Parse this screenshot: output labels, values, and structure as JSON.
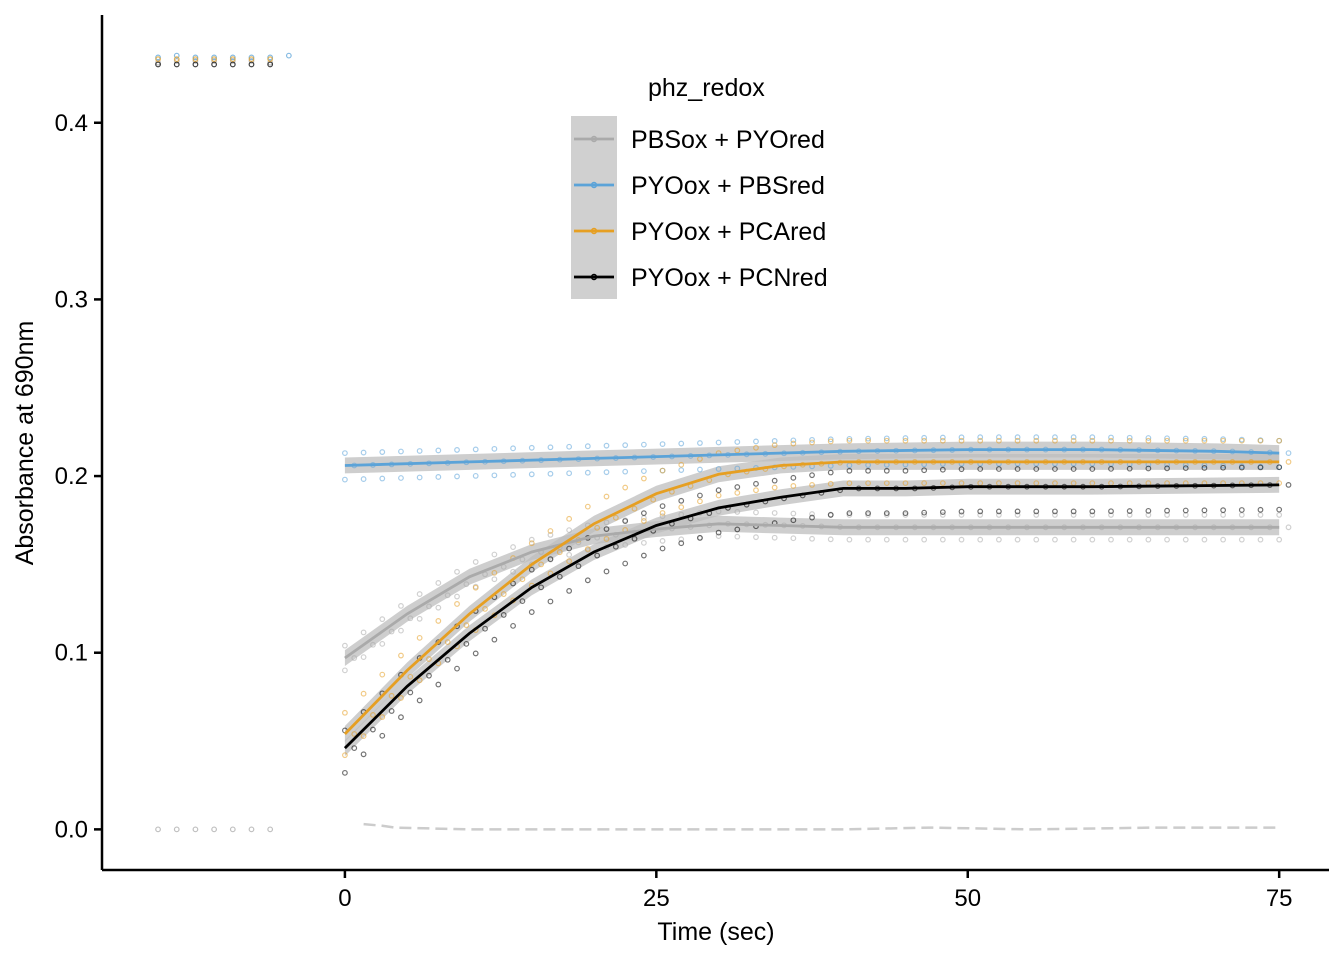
{
  "chart_data": {
    "type": "scatter",
    "xlabel": "Time (sec)",
    "ylabel": "Absorbance at 690nm",
    "xlim": [
      -19.5,
      79
    ],
    "ylim": [
      -0.023,
      0.461
    ],
    "x_ticks": [
      0,
      25,
      50,
      75
    ],
    "y_ticks": [
      0.0,
      0.1,
      0.2,
      0.3,
      0.4
    ],
    "x_tick_labels": [
      "0",
      "25",
      "50",
      "75"
    ],
    "y_tick_labels": [
      "0.0",
      "0.1",
      "0.2",
      "0.3",
      "0.4"
    ],
    "grid": false,
    "legend": {
      "title": "phz_redox",
      "position": "top-center",
      "entries": [
        "PBSox + PYOred",
        "PYOox + PBSred",
        "PYOox + PCAred",
        "PYOox + PCNred"
      ]
    },
    "series": [
      {
        "name": "PBSox + PYOred",
        "color": "#aaaaaa",
        "baseline_points": [
          [
            -15,
            0.434
          ],
          [
            -15,
            0.0
          ],
          [
            -13.5,
            0.435
          ],
          [
            -13.5,
            0.0
          ],
          [
            -12,
            0.435
          ],
          [
            -12,
            0.0
          ],
          [
            -10.5,
            0.435
          ],
          [
            -10.5,
            0.0
          ],
          [
            -9,
            0.435
          ],
          [
            -9,
            0.0
          ],
          [
            -7.5,
            0.435
          ],
          [
            -7.5,
            0.0
          ],
          [
            -6,
            0.434
          ],
          [
            -6,
            0.0
          ]
        ],
        "fit": [
          [
            0,
            0.097
          ],
          [
            5,
            0.122
          ],
          [
            10,
            0.143
          ],
          [
            15,
            0.157
          ],
          [
            20,
            0.166
          ],
          [
            25,
            0.17
          ],
          [
            30,
            0.173
          ],
          [
            35,
            0.172
          ],
          [
            40,
            0.171
          ],
          [
            45,
            0.171
          ],
          [
            50,
            0.171
          ],
          [
            55,
            0.171
          ],
          [
            60,
            0.171
          ],
          [
            65,
            0.171
          ],
          [
            70,
            0.171
          ],
          [
            75,
            0.171
          ]
        ],
        "replicate_offsets": [
          -0.007,
          0.0,
          0.007
        ]
      },
      {
        "name": "PYOox + PBSred",
        "color": "#5ba3d8",
        "baseline_points": [
          [
            -15,
            0.437
          ],
          [
            -13.5,
            0.438
          ],
          [
            -12,
            0.437
          ],
          [
            -10.5,
            0.437
          ],
          [
            -9,
            0.437
          ],
          [
            -7.5,
            0.437
          ],
          [
            -6,
            0.437
          ],
          [
            -4.5,
            0.438
          ]
        ],
        "fit": [
          [
            0,
            0.206
          ],
          [
            10,
            0.208
          ],
          [
            20,
            0.21
          ],
          [
            30,
            0.212
          ],
          [
            40,
            0.214
          ],
          [
            50,
            0.215
          ],
          [
            60,
            0.215
          ],
          [
            70,
            0.214
          ],
          [
            75,
            0.213
          ]
        ],
        "replicate_offsets": [
          -0.008,
          0.0,
          0.007
        ]
      },
      {
        "name": "PYOox + PCAred",
        "color": "#e69f22",
        "baseline_points": [
          [
            -15,
            0.436
          ],
          [
            -13.5,
            0.436
          ],
          [
            -12,
            0.436
          ],
          [
            -10.5,
            0.436
          ],
          [
            -9,
            0.436
          ],
          [
            -7.5,
            0.436
          ],
          [
            -6,
            0.436
          ]
        ],
        "fit": [
          [
            0,
            0.054
          ],
          [
            5,
            0.09
          ],
          [
            10,
            0.122
          ],
          [
            15,
            0.15
          ],
          [
            20,
            0.173
          ],
          [
            25,
            0.19
          ],
          [
            30,
            0.201
          ],
          [
            35,
            0.206
          ],
          [
            40,
            0.208
          ],
          [
            50,
            0.208
          ],
          [
            60,
            0.208
          ],
          [
            75,
            0.208
          ]
        ],
        "replicate_offsets": [
          -0.012,
          0.0,
          0.012
        ]
      },
      {
        "name": "PYOox + PCNred",
        "color": "#000000",
        "baseline_points": [
          [
            -15,
            0.433
          ],
          [
            -13.5,
            0.433
          ],
          [
            -12,
            0.433
          ],
          [
            -10.5,
            0.433
          ],
          [
            -9,
            0.433
          ],
          [
            -7.5,
            0.433
          ],
          [
            -6,
            0.433
          ]
        ],
        "fit": [
          [
            0,
            0.046
          ],
          [
            5,
            0.081
          ],
          [
            10,
            0.111
          ],
          [
            15,
            0.137
          ],
          [
            20,
            0.157
          ],
          [
            25,
            0.172
          ],
          [
            30,
            0.182
          ],
          [
            35,
            0.188
          ],
          [
            40,
            0.193
          ],
          [
            45,
            0.193
          ],
          [
            50,
            0.194
          ],
          [
            60,
            0.194
          ],
          [
            75,
            0.195
          ]
        ],
        "replicate_offsets": [
          -0.014,
          0.0,
          0.01
        ]
      }
    ],
    "background_line": {
      "color": "#cccccc",
      "style": "dashed",
      "points": [
        [
          1.5,
          0.003
        ],
        [
          3,
          0.002
        ],
        [
          4,
          0.001
        ],
        [
          10,
          0.0
        ],
        [
          20,
          0.0
        ],
        [
          30,
          0.0
        ],
        [
          40,
          0.0
        ],
        [
          47,
          0.001
        ],
        [
          55,
          0.0
        ],
        [
          65,
          0.001
        ],
        [
          75,
          0.001
        ]
      ]
    }
  }
}
